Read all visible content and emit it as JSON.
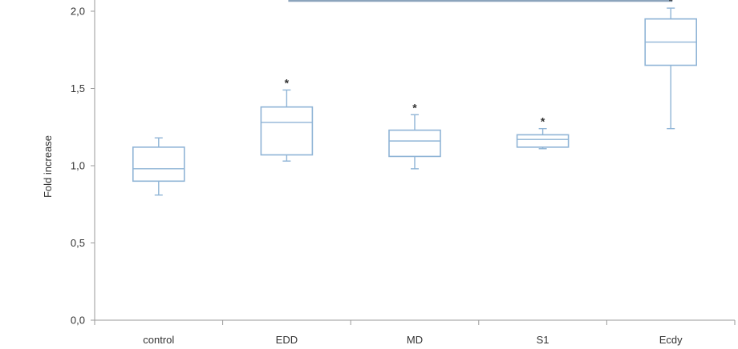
{
  "chart_data": {
    "type": "box",
    "ylabel": "Fold increase",
    "xlabel": "",
    "ylim": [
      0,
      2.0
    ],
    "yticks": [
      "0,0",
      "0,5",
      "1,0",
      "1,5",
      "2,0"
    ],
    "categories": [
      "control",
      "EDD",
      "MD",
      "S1",
      "Ecdy"
    ],
    "boxes": [
      {
        "category": "control",
        "min": 0.81,
        "q1": 0.9,
        "median": 0.98,
        "q3": 1.12,
        "max": 1.18,
        "significant": false
      },
      {
        "category": "EDD",
        "min": 1.03,
        "q1": 1.07,
        "median": 1.28,
        "q3": 1.38,
        "max": 1.49,
        "significant": true
      },
      {
        "category": "MD",
        "min": 0.98,
        "q1": 1.06,
        "median": 1.16,
        "q3": 1.23,
        "max": 1.33,
        "significant": true
      },
      {
        "category": "S1",
        "min": 1.11,
        "q1": 1.12,
        "median": 1.17,
        "q3": 1.2,
        "max": 1.24,
        "significant": true
      },
      {
        "category": "Ecdy",
        "min": 1.24,
        "q1": 1.65,
        "median": 1.8,
        "q3": 1.95,
        "max": 2.02,
        "significant": true
      }
    ],
    "significance_marker": "*",
    "bracket_from": "EDD",
    "bracket_to": "Ecdy",
    "box_color": "#8fb4d6",
    "bracket_color": "#8ca4bc",
    "grid": false
  }
}
